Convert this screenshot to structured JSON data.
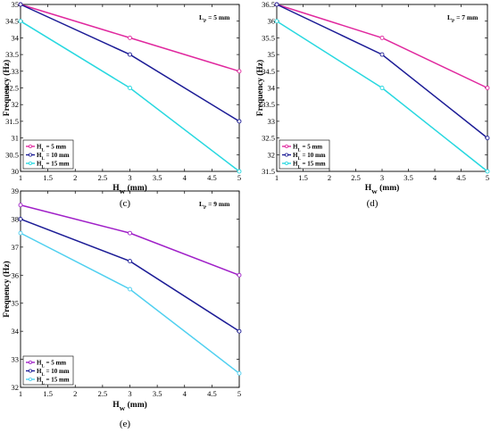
{
  "chart_data": [
    {
      "id": "c",
      "type": "line",
      "caption": "(c)",
      "annotation": "L",
      "annotation_sub": "P",
      "annotation_tail": " = 5 mm",
      "xlabel": "H",
      "xlabel_sub": "W",
      "xlabel_tail": " (mm)",
      "ylabel": "Frequency (Hz)",
      "xlim": [
        1,
        5
      ],
      "ylim": [
        30,
        35
      ],
      "xticks": [
        1,
        1.5,
        2,
        2.5,
        3,
        3.5,
        4,
        4.5,
        5
      ],
      "xtick_labels": [
        "1",
        "1.5",
        "2",
        "2.5",
        "3",
        "3.5",
        "4",
        "4.5",
        "5"
      ],
      "yticks": [
        30,
        30.5,
        31,
        31.5,
        32,
        32.5,
        33,
        33.5,
        34,
        34.5,
        35
      ],
      "ytick_labels": [
        "30",
        "30.5",
        "31",
        "31.5",
        "32",
        "32.5",
        "33",
        "33.5",
        "34",
        "34.5",
        "35"
      ],
      "x": [
        1,
        3,
        5
      ],
      "legend_position": "lower-left",
      "series": [
        {
          "name": "H",
          "name_sub": "L",
          "name_tail": " = 5 mm",
          "color": "#e0289e",
          "values": [
            35,
            34,
            33
          ]
        },
        {
          "name": "H",
          "name_sub": "L",
          "name_tail": " = 10 mm",
          "color": "#1c1c96",
          "values": [
            35,
            33.5,
            31.5
          ]
        },
        {
          "name": "H",
          "name_sub": "L",
          "name_tail": " = 15 mm",
          "color": "#28d8e0",
          "values": [
            34.5,
            32.5,
            30
          ]
        }
      ]
    },
    {
      "id": "d",
      "type": "line",
      "caption": "(d)",
      "annotation": "L",
      "annotation_sub": "P",
      "annotation_tail": " = 7 mm",
      "xlabel": "H",
      "xlabel_sub": "W",
      "xlabel_tail": " (mm)",
      "ylabel": "Frequency (Hz)",
      "xlim": [
        1,
        5
      ],
      "ylim": [
        31.5,
        36.5
      ],
      "xticks": [
        1,
        1.5,
        2,
        2.5,
        3,
        3.5,
        4,
        4.5,
        5
      ],
      "xtick_labels": [
        "1",
        "1.5",
        "2",
        "2.5",
        "3",
        "3.5",
        "4",
        "4.5",
        "5"
      ],
      "yticks": [
        31.5,
        32,
        32.5,
        33,
        33.5,
        34,
        34.5,
        35,
        35.5,
        36,
        36.5
      ],
      "ytick_labels": [
        "31.5",
        "32",
        "32.5",
        "33",
        "33.5",
        "34",
        "34.5",
        "35",
        "35.5",
        "36",
        "36.5"
      ],
      "x": [
        1,
        3,
        5
      ],
      "legend_position": "lower-left",
      "series": [
        {
          "name": "H",
          "name_sub": "L",
          "name_tail": " = 5 mm",
          "color": "#e0289e",
          "values": [
            36.5,
            35.5,
            34
          ]
        },
        {
          "name": "H",
          "name_sub": "L",
          "name_tail": " = 10 mm",
          "color": "#1c1c96",
          "values": [
            36.5,
            35,
            32.5
          ]
        },
        {
          "name": "H",
          "name_sub": "L",
          "name_tail": " = 15 mm",
          "color": "#28d8e0",
          "values": [
            36,
            34,
            31.5
          ]
        }
      ]
    },
    {
      "id": "e",
      "type": "line",
      "caption": "(e)",
      "annotation": "L",
      "annotation_sub": "P",
      "annotation_tail": " = 9 mm",
      "xlabel": "H",
      "xlabel_sub": "W",
      "xlabel_tail": " (mm)",
      "ylabel": "Frequency (Hz)",
      "xlim": [
        1,
        5
      ],
      "ylim": [
        32,
        39
      ],
      "xticks": [
        1,
        1.5,
        2,
        2.5,
        3,
        3.5,
        4,
        4.5,
        5
      ],
      "xtick_labels": [
        "1",
        "1.5",
        "2",
        "2.5",
        "3",
        "3.5",
        "4",
        "4.5",
        "5"
      ],
      "yticks": [
        32,
        33,
        34,
        35,
        36,
        37,
        38,
        39
      ],
      "ytick_labels": [
        "32",
        "33",
        "34",
        "35",
        "36",
        "37",
        "38",
        "39"
      ],
      "x": [
        1,
        3,
        5
      ],
      "legend_position": "lower-left",
      "series": [
        {
          "name": "H",
          "name_sub": "L",
          "name_tail": " = 5 mm",
          "color": "#a020c8",
          "values": [
            38.5,
            37.5,
            36
          ]
        },
        {
          "name": "H",
          "name_sub": "L",
          "name_tail": " = 10 mm",
          "color": "#1c1c96",
          "values": [
            38,
            36.5,
            34
          ]
        },
        {
          "name": "H",
          "name_sub": "L",
          "name_tail": " = 15 mm",
          "color": "#50d0f0",
          "values": [
            37.5,
            35.5,
            32.5
          ]
        }
      ]
    }
  ]
}
